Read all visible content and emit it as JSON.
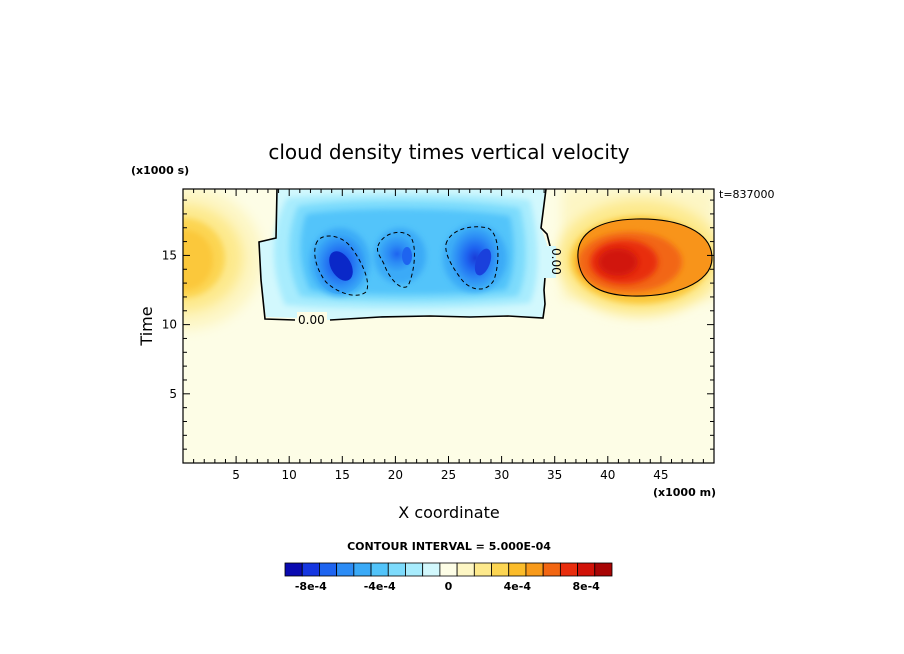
{
  "chart_data": {
    "type": "heatmap",
    "title": "cloud density times vertical velocity",
    "xlabel": "X coordinate",
    "ylabel": "Time",
    "x_units": "(x1000 m)",
    "y_units": "(x1000 s)",
    "time_stamp": "t=837000",
    "xlim": [
      0,
      50
    ],
    "ylim": [
      0,
      19.8
    ],
    "x_ticks": [
      5,
      10,
      15,
      20,
      25,
      30,
      35,
      40,
      45
    ],
    "y_ticks": [
      5,
      10,
      15
    ],
    "contour_interval_text": "CONTOUR INTERVAL = 5.000E-04",
    "zero_contour_label": "0.00",
    "regions": [
      {
        "name": "negative-region",
        "x_range": [
          7,
          35
        ],
        "y_range": [
          10.5,
          19.8
        ],
        "min_value": -0.0009,
        "centers": [
          15,
          21,
          28
        ]
      },
      {
        "name": "positive-left",
        "x_range": [
          0,
          5
        ],
        "y_range": [
          12,
          18.5
        ],
        "max_value": 0.0003,
        "center": [
          0,
          14.8
        ]
      },
      {
        "name": "positive-right",
        "x_range": [
          35,
          50
        ],
        "y_range": [
          11.5,
          18.5
        ],
        "max_value": 0.00085,
        "center": [
          41,
          14.8
        ]
      }
    ],
    "colorbar": {
      "levels": [
        -0.0009,
        -0.0008,
        -0.0007,
        -0.0006,
        -0.0005,
        -0.0004,
        -0.0003,
        -0.0002,
        -0.0001,
        0,
        0.0001,
        0.0002,
        0.0003,
        0.0004,
        0.0005,
        0.0006,
        0.0007,
        0.0008,
        0.0009
      ],
      "colors": [
        "#0a0ab0",
        "#1536e0",
        "#1e64f0",
        "#2c8cf5",
        "#3aaaf7",
        "#52c4fa",
        "#7ddbfc",
        "#a8ecfd",
        "#d2f8fd",
        "#fdfde6",
        "#fdf6c4",
        "#fde98c",
        "#fcd552",
        "#fbbc2a",
        "#f89a1a",
        "#f26612",
        "#e82d0d",
        "#d11208",
        "#a80505"
      ],
      "tick_labels": [
        "-8e-4",
        "-4e-4",
        "0",
        "4e-4",
        "8e-4"
      ],
      "tick_values": [
        -0.0008,
        -0.0004,
        0,
        0.0004,
        0.0008
      ]
    }
  }
}
